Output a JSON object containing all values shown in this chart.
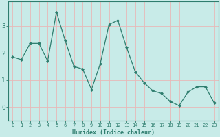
{
  "xlabel": "Humidex (Indice chaleur)",
  "x": [
    0,
    1,
    2,
    3,
    4,
    5,
    6,
    7,
    8,
    9,
    10,
    11,
    12,
    13,
    14,
    15,
    16,
    17,
    18,
    19,
    20,
    21,
    22,
    23
  ],
  "y": [
    1.85,
    1.75,
    2.35,
    2.35,
    1.7,
    3.5,
    2.45,
    1.5,
    1.4,
    0.65,
    1.6,
    3.05,
    3.2,
    2.2,
    1.3,
    0.9,
    0.6,
    0.5,
    0.2,
    0.05,
    0.55,
    0.75,
    0.75,
    0.15
  ],
  "line_color": "#2e7d6e",
  "marker": "D",
  "marker_size": 2,
  "bg_color": "#c8ebe8",
  "grid_color": "#e8b8b8",
  "axis_color": "#2e7d6e",
  "ylim": [
    -0.5,
    3.9
  ],
  "xlim": [
    -0.5,
    23.5
  ],
  "yticks": [
    0,
    1,
    2,
    3
  ],
  "xticks": [
    0,
    1,
    2,
    3,
    4,
    5,
    6,
    7,
    8,
    9,
    10,
    11,
    12,
    13,
    14,
    15,
    16,
    17,
    18,
    19,
    20,
    21,
    22,
    23
  ],
  "xlabel_fontsize": 6.0,
  "tick_fontsize": 5.0,
  "ytick_fontsize": 6.5
}
